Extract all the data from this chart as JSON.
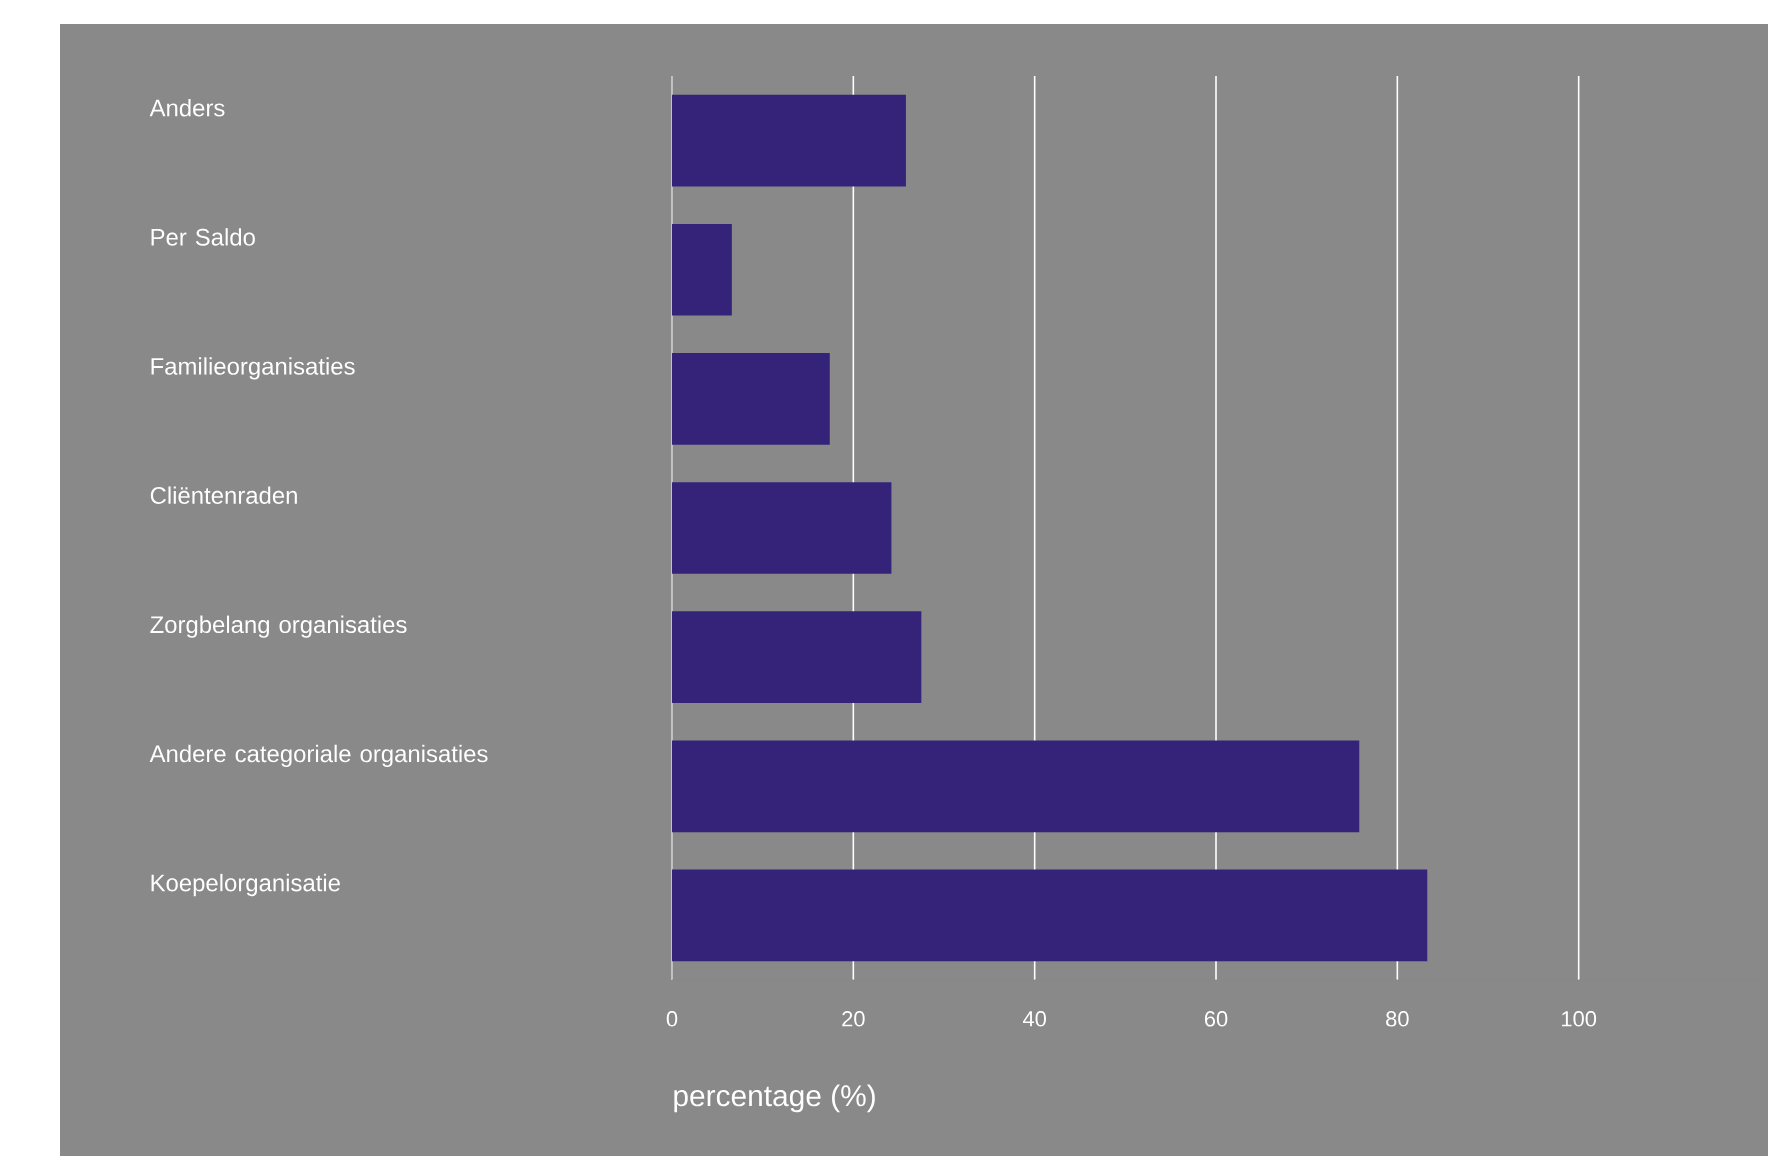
{
  "chart_data": {
    "type": "bar",
    "orientation": "horizontal",
    "xlabel": "percentage (%)",
    "categories": [
      "Anders",
      "Per Saldo",
      "Familieorganisaties",
      "Cliëntenraden",
      "Zorgbelang organisaties",
      "Andere categoriale organisaties",
      "Koepelorganisatie"
    ],
    "values": [
      25.8,
      6.6,
      17.4,
      24.2,
      27.5,
      75.8,
      83.3
    ],
    "color": "#35237a",
    "xlim": [
      0,
      120
    ],
    "xticks": [
      0,
      20,
      40,
      60,
      80,
      100
    ],
    "grid": "x"
  }
}
